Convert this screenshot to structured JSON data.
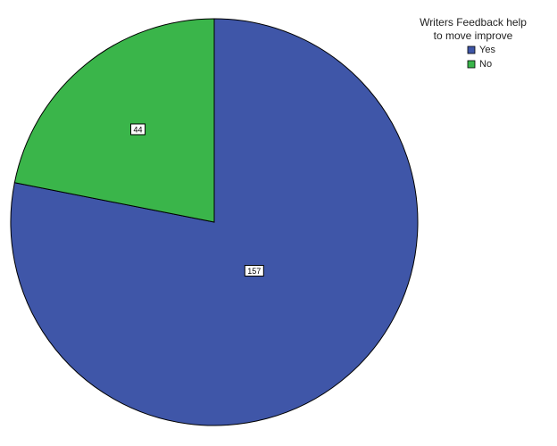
{
  "chart_data": {
    "type": "pie",
    "legend_title": "Writers Feedback help to move improve",
    "categories": [
      "Yes",
      "No"
    ],
    "values": [
      157,
      44
    ],
    "colors": [
      "#3f56a8",
      "#3ab54a"
    ]
  }
}
